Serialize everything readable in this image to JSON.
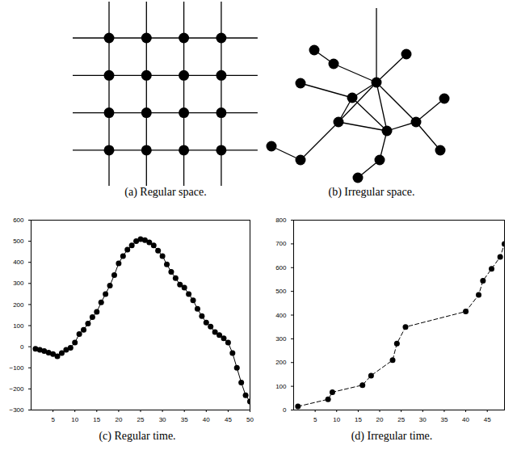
{
  "diagrams": [
    {
      "caption": "(a) Regular space.",
      "type": "grid",
      "rows": 4,
      "columns": 4
    },
    {
      "caption": "(b) Irregular space.",
      "type": "graph"
    }
  ],
  "chart_data": [
    {
      "type": "line",
      "title": "(c) Regular time.",
      "x": [
        1,
        2,
        3,
        4,
        5,
        6,
        7,
        8,
        9,
        10,
        11,
        12,
        13,
        14,
        15,
        16,
        17,
        18,
        19,
        20,
        21,
        22,
        23,
        24,
        25,
        26,
        27,
        28,
        29,
        30,
        31,
        32,
        33,
        34,
        35,
        36,
        37,
        38,
        39,
        40,
        41,
        42,
        43,
        44,
        45,
        46,
        47,
        48,
        49,
        50
      ],
      "values": [
        -10,
        -15,
        -20,
        -28,
        -35,
        -45,
        -30,
        -15,
        -5,
        20,
        60,
        80,
        110,
        140,
        165,
        210,
        250,
        290,
        340,
        395,
        430,
        460,
        480,
        500,
        510,
        505,
        495,
        480,
        455,
        430,
        390,
        355,
        325,
        295,
        280,
        250,
        220,
        180,
        145,
        115,
        95,
        70,
        55,
        40,
        20,
        -30,
        -100,
        -170,
        -230,
        -260
      ],
      "xlim": [
        0,
        50
      ],
      "xticks": [
        5,
        10,
        15,
        20,
        25,
        30,
        35,
        40,
        45,
        50
      ],
      "ylim": [
        -300,
        600
      ],
      "yticks": [
        -300,
        -200,
        -100,
        0,
        100,
        200,
        300,
        400,
        500,
        600
      ],
      "color": "#000000",
      "marker": "circle",
      "line_style": "solid",
      "grid": false
    },
    {
      "type": "line",
      "title": "(d) Irregular time.",
      "x": [
        1,
        8,
        9,
        16,
        18,
        23,
        24,
        26,
        40,
        43,
        44,
        46,
        48,
        49
      ],
      "values": [
        15,
        45,
        75,
        105,
        145,
        210,
        280,
        350,
        415,
        485,
        545,
        595,
        645,
        700
      ],
      "xlim": [
        0,
        49
      ],
      "xticks": [
        5,
        10,
        15,
        20,
        25,
        30,
        35,
        40,
        45
      ],
      "ylim": [
        0,
        800
      ],
      "yticks": [
        0,
        100,
        200,
        300,
        400,
        500,
        600,
        700,
        800
      ],
      "color": "#000000",
      "marker": "circle",
      "line_style": "dashed",
      "grid": false
    }
  ]
}
